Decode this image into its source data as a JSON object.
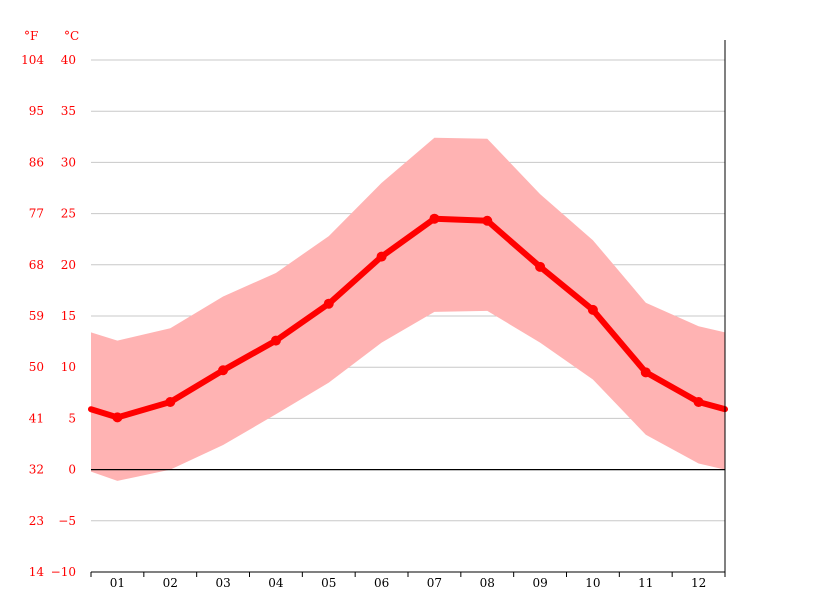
{
  "chart_data": {
    "type": "line",
    "title": "",
    "units": {
      "fahrenheit": "°F",
      "celsius": "°C"
    },
    "categories": [
      "01",
      "02",
      "03",
      "04",
      "05",
      "06",
      "07",
      "08",
      "09",
      "10",
      "11",
      "12"
    ],
    "celsius_ticks": [
      "40",
      "35",
      "30",
      "25",
      "20",
      "15",
      "10",
      "5",
      "0",
      "−5",
      "−10"
    ],
    "fahrenheit_ticks": [
      "104",
      "95",
      "86",
      "77",
      "68",
      "59",
      "50",
      "41",
      "32",
      "23",
      "14"
    ],
    "ylim": [
      -10,
      40
    ],
    "series": [
      {
        "values": [
          5.1,
          6.6,
          9.7,
          12.6,
          16.2,
          20.8,
          24.5,
          24.3,
          19.8,
          15.6,
          9.5,
          6.6
        ]
      },
      {
        "values": [
          12.6,
          13.8,
          16.9,
          19.2,
          22.8,
          28.0,
          32.4,
          32.3,
          26.9,
          22.4,
          16.3,
          14.0
        ]
      },
      {
        "values": [
          -1.1,
          0.0,
          2.4,
          5.4,
          8.5,
          12.4,
          15.4,
          15.5,
          12.4,
          8.8,
          3.4,
          0.6
        ]
      }
    ],
    "edge_values": {
      "mean_start": 5.9,
      "mean_end": 5.9,
      "max_start": 13.4,
      "max_end": 13.4,
      "min_start": -0.2,
      "min_end": 0.0
    },
    "colors": {
      "line": "#ff0000",
      "band": "#ffb3b3",
      "grid": "#c8c8c8",
      "zero": "#000000",
      "label": "#ff0000"
    }
  }
}
